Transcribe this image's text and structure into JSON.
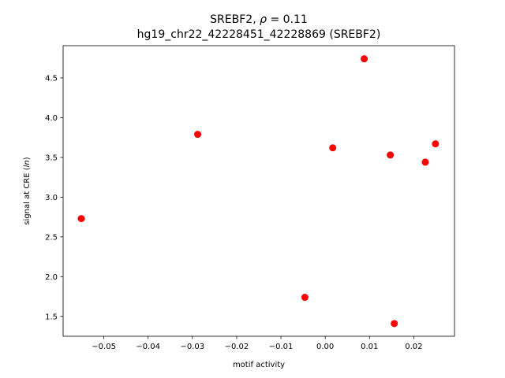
{
  "chart_data": {
    "type": "scatter",
    "title_line1_prefix": "SREBF2, ",
    "title_line1_rho": "ρ",
    "title_line1_suffix": " = 0.11",
    "title_line2": "hg19_chr22_42228451_42228869 (SREBF2)",
    "xlabel": "motif activity",
    "ylabel_prefix": "signal at CRE (",
    "ylabel_italic": "ln",
    "ylabel_suffix": ")",
    "xlim": [
      -0.0592,
      0.0292
    ],
    "ylim": [
      1.25,
      4.905
    ],
    "xticks": [
      -0.05,
      -0.04,
      -0.03,
      -0.02,
      -0.01,
      0.0,
      0.01,
      0.02
    ],
    "xtick_labels": [
      "−0.05",
      "−0.04",
      "−0.03",
      "−0.02",
      "−0.01",
      "0.00",
      "0.01",
      "0.02"
    ],
    "yticks": [
      1.5,
      2.0,
      2.5,
      3.0,
      3.5,
      4.0,
      4.5
    ],
    "ytick_labels": [
      "1.5",
      "2.0",
      "2.5",
      "3.0",
      "3.5",
      "4.0",
      "4.5"
    ],
    "marker_color": "#ff0000",
    "points": [
      {
        "x": -0.0551,
        "y": 2.73
      },
      {
        "x": -0.0288,
        "y": 3.79
      },
      {
        "x": -0.0046,
        "y": 1.74
      },
      {
        "x": 0.0017,
        "y": 3.62
      },
      {
        "x": 0.0088,
        "y": 4.74
      },
      {
        "x": 0.0147,
        "y": 3.53
      },
      {
        "x": 0.0156,
        "y": 1.41
      },
      {
        "x": 0.0226,
        "y": 3.44
      },
      {
        "x": 0.0249,
        "y": 3.67
      }
    ]
  }
}
